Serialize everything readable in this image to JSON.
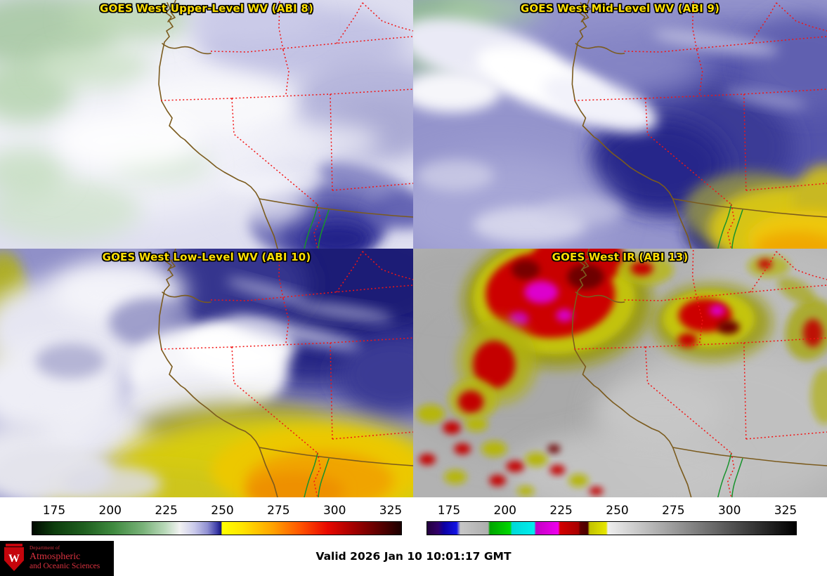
{
  "panels": [
    {
      "id": "upper-level-wv",
      "title": "GOES West Upper-Level WV (ABI 8)"
    },
    {
      "id": "mid-level-wv",
      "title": "GOES West Mid-Level WV (ABI 9)"
    },
    {
      "id": "low-level-wv",
      "title": "GOES West Low-Level WV (ABI 10)"
    },
    {
      "id": "ir",
      "title": "GOES West IR (ABI 13)"
    }
  ],
  "style": {
    "panel_title_color": "#ffdf00",
    "panel_title_outline": "#000000",
    "coastline_color": "#7b5b1e",
    "state_border_color": "#f21414",
    "river_color": "#17922c",
    "logo_background": "#000000",
    "logo_red": "#c5050c",
    "logo_text_red": "#d9323f"
  },
  "colorbars": [
    {
      "name": "water-vapor-brightness-temperature-scale",
      "range": [
        165,
        330
      ],
      "ticks": [
        "175",
        "200",
        "225",
        "250",
        "275",
        "300",
        "325"
      ],
      "stops": [
        [
          0,
          "#000a00"
        ],
        [
          6,
          "#0d3d0d"
        ],
        [
          14,
          "#1f5f1f"
        ],
        [
          22,
          "#3f8a3f"
        ],
        [
          30,
          "#79b279"
        ],
        [
          36,
          "#b9d9b9"
        ],
        [
          40,
          "#f2f2f2"
        ],
        [
          44,
          "#c9c9ea"
        ],
        [
          47.5,
          "#9090d2"
        ],
        [
          50,
          "#4040aa"
        ],
        [
          51.2,
          "#14147e"
        ],
        [
          51.4,
          "#ffff00"
        ],
        [
          57,
          "#ffe400"
        ],
        [
          65,
          "#ffa400"
        ],
        [
          73,
          "#ff5000"
        ],
        [
          80,
          "#e80800"
        ],
        [
          87,
          "#a40000"
        ],
        [
          94,
          "#5c0000"
        ],
        [
          100,
          "#1c0000"
        ]
      ]
    },
    {
      "name": "infrared-brightness-temperature-scale",
      "range": [
        165,
        330
      ],
      "ticks": [
        "175",
        "200",
        "225",
        "250",
        "275",
        "300",
        "325"
      ],
      "stops": [
        [
          0,
          "#23003d"
        ],
        [
          3,
          "#32006a"
        ],
        [
          4.5,
          "#0c00a0"
        ],
        [
          8,
          "#1212e6"
        ],
        [
          9,
          "#c6c6c6"
        ],
        [
          16.5,
          "#aeaeae"
        ],
        [
          17,
          "#00a400"
        ],
        [
          22.5,
          "#00d800"
        ],
        [
          23,
          "#00d8d8"
        ],
        [
          29,
          "#00eeee"
        ],
        [
          29.5,
          "#c400c4"
        ],
        [
          35.5,
          "#ee00ee"
        ],
        [
          36,
          "#d40000"
        ],
        [
          41,
          "#a80000"
        ],
        [
          41.5,
          "#600000"
        ],
        [
          43.5,
          "#4a0000"
        ],
        [
          44,
          "#c2c200"
        ],
        [
          48.5,
          "#e6e600"
        ],
        [
          49,
          "#eeeeee"
        ],
        [
          100,
          "#000000"
        ]
      ]
    }
  ],
  "footer": {
    "valid_label": "Valid 2026 Jan 10 10:01:17 GMT",
    "logo": {
      "monogram": "W",
      "dept_line": "Department of",
      "name_line1": "Atmospheric",
      "name_line2": "and Oceanic Sciences"
    }
  }
}
